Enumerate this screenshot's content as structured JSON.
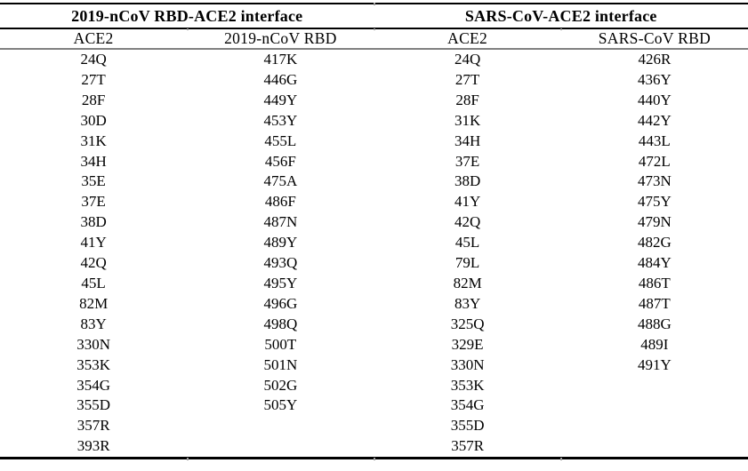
{
  "table": {
    "group_headers": [
      {
        "label": "2019-nCoV RBD-ACE2 interface"
      },
      {
        "label": "SARS-CoV-ACE2 interface"
      }
    ],
    "column_headers": [
      "ACE2",
      "2019-nCoV RBD",
      "ACE2",
      "SARS-CoV RBD"
    ],
    "columns": [
      {
        "group": "2019-nCoV RBD-ACE2 interface",
        "name": "ACE2",
        "residues": [
          "24Q",
          "27T",
          "28F",
          "30D",
          "31K",
          "34H",
          "35E",
          "37E",
          "38D",
          "41Y",
          "42Q",
          "45L",
          "82M",
          "83Y",
          "330N",
          "353K",
          "354G",
          "355D",
          "357R",
          "393R"
        ]
      },
      {
        "group": "2019-nCoV RBD-ACE2 interface",
        "name": "2019-nCoV RBD",
        "residues": [
          "417K",
          "446G",
          "449Y",
          "453Y",
          "455L",
          "456F",
          "475A",
          "486F",
          "487N",
          "489Y",
          "493Q",
          "495Y",
          "496G",
          "498Q",
          "500T",
          "501N",
          "502G",
          "505Y"
        ]
      },
      {
        "group": "SARS-CoV-ACE2 interface",
        "name": "ACE2",
        "residues": [
          "24Q",
          "27T",
          "28F",
          "31K",
          "34H",
          "37E",
          "38D",
          "41Y",
          "42Q",
          "45L",
          "79L",
          "82M",
          "83Y",
          "325Q",
          "329E",
          "330N",
          "353K",
          "354G",
          "355D",
          "357R"
        ]
      },
      {
        "group": "SARS-CoV-ACE2 interface",
        "name": "SARS-CoV RBD",
        "residues": [
          "426R",
          "436Y",
          "440Y",
          "442Y",
          "443L",
          "472L",
          "473N",
          "475Y",
          "479N",
          "482G",
          "484Y",
          "486T",
          "487T",
          "488G",
          "489I",
          "491Y"
        ]
      }
    ],
    "rows": [
      [
        "24Q",
        "417K",
        "24Q",
        "426R"
      ],
      [
        "27T",
        "446G",
        "27T",
        "436Y"
      ],
      [
        "28F",
        "449Y",
        "28F",
        "440Y"
      ],
      [
        "30D",
        "453Y",
        "31K",
        "442Y"
      ],
      [
        "31K",
        "455L",
        "34H",
        "443L"
      ],
      [
        "34H",
        "456F",
        "37E",
        "472L"
      ],
      [
        "35E",
        "475A",
        "38D",
        "473N"
      ],
      [
        "37E",
        "486F",
        "41Y",
        "475Y"
      ],
      [
        "38D",
        "487N",
        "42Q",
        "479N"
      ],
      [
        "41Y",
        "489Y",
        "45L",
        "482G"
      ],
      [
        "42Q",
        "493Q",
        "79L",
        "484Y"
      ],
      [
        "45L",
        "495Y",
        "82M",
        "486T"
      ],
      [
        "82M",
        "496G",
        "83Y",
        "487T"
      ],
      [
        "83Y",
        "498Q",
        "325Q",
        "488G"
      ],
      [
        "330N",
        "500T",
        "329E",
        "489I"
      ],
      [
        "353K",
        "501N",
        "330N",
        "491Y"
      ],
      [
        "354G",
        "502G",
        "353K",
        ""
      ],
      [
        "355D",
        "505Y",
        "354G",
        ""
      ],
      [
        "357R",
        "",
        "355D",
        ""
      ],
      [
        "393R",
        "",
        "357R",
        ""
      ]
    ]
  },
  "colors": {
    "background": "#ffffff",
    "text": "#000000",
    "heavy_rule": "#000000",
    "light_rule": "#808080"
  }
}
